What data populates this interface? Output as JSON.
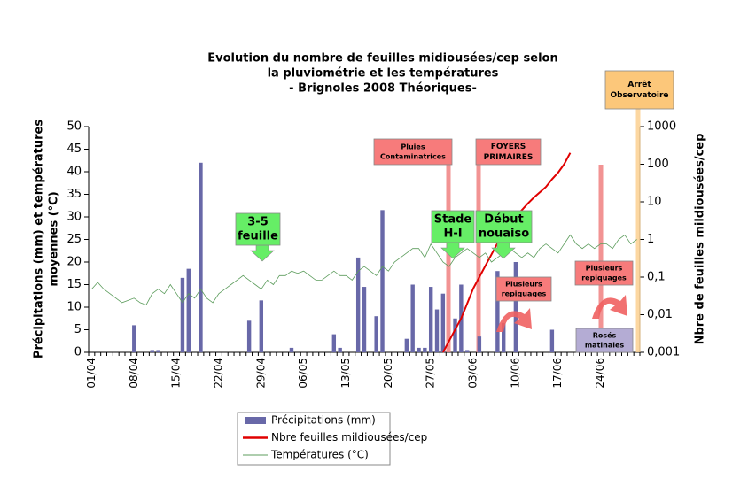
{
  "chart_data": {
    "type": "bar-line",
    "title_lines": [
      "Evolution du nombre de feuilles midiousées/cep selon",
      "la pluviométrie et les températures",
      "- Brignoles 2008 Théoriques-"
    ],
    "ylabel_lines": [
      "Précipitations (mm) et températures",
      "moyennes (°C)"
    ],
    "y2label": "Nbre de feuilles mildiousées/cep",
    "categories": [
      "01/04",
      null,
      null,
      null,
      null,
      null,
      null,
      "08/04",
      null,
      null,
      null,
      null,
      null,
      null,
      "15/04",
      null,
      null,
      null,
      null,
      null,
      null,
      "22/04",
      null,
      null,
      null,
      null,
      null,
      null,
      "29/04",
      null,
      null,
      null,
      null,
      null,
      null,
      "06/05",
      null,
      null,
      null,
      null,
      null,
      null,
      "13/05",
      null,
      null,
      null,
      null,
      null,
      null,
      "20/05",
      null,
      null,
      null,
      null,
      null,
      null,
      "27/05",
      null,
      null,
      null,
      null,
      null,
      null,
      "03/06",
      null,
      null,
      null,
      null,
      null,
      null,
      "10/06",
      null,
      null,
      null,
      null,
      null,
      null,
      "17/06",
      null,
      null,
      null,
      null,
      null,
      null,
      "24/06",
      null,
      null,
      null,
      null,
      null,
      null
    ],
    "series": [
      {
        "name": "Précipitations (mm)",
        "type": "bar",
        "color": "#6868a8",
        "values": [
          0,
          0,
          0,
          0,
          0,
          0,
          0,
          6,
          0,
          0,
          0.5,
          0.5,
          0,
          0,
          0,
          16.5,
          18.5,
          0,
          42,
          0,
          0,
          0,
          0,
          0,
          0,
          0,
          7,
          0,
          11.5,
          0,
          0,
          0,
          0,
          1,
          0,
          0,
          0,
          0,
          0,
          0,
          4,
          1,
          0,
          0,
          21,
          14.5,
          0,
          8,
          31.5,
          0,
          0,
          0,
          3,
          15,
          1,
          1,
          14.5,
          9.5,
          13,
          0,
          7.5,
          15,
          0.5,
          0,
          3.5,
          0,
          0,
          18,
          6.5,
          0,
          20,
          0,
          0,
          0,
          0,
          0,
          5,
          0,
          0,
          0,
          0,
          0,
          0,
          0,
          0,
          0,
          0,
          0,
          0,
          0,
          0
        ]
      },
      {
        "name": "Nbre feuilles mildiousées/cep",
        "type": "line",
        "axis": "y2",
        "color": "#e00000",
        "values": [
          null,
          null,
          null,
          null,
          null,
          null,
          null,
          null,
          null,
          null,
          null,
          null,
          null,
          null,
          null,
          null,
          null,
          null,
          null,
          null,
          null,
          null,
          null,
          null,
          null,
          null,
          null,
          null,
          null,
          null,
          null,
          null,
          null,
          null,
          null,
          null,
          null,
          null,
          null,
          null,
          null,
          null,
          null,
          null,
          null,
          null,
          null,
          null,
          null,
          null,
          null,
          null,
          null,
          null,
          null,
          null,
          null,
          null,
          0.001,
          0.002,
          0.004,
          0.008,
          0.02,
          0.05,
          0.1,
          0.2,
          0.4,
          0.8,
          1.3,
          2.5,
          4,
          6,
          9,
          13,
          18,
          25,
          40,
          60,
          100,
          200,
          null,
          null,
          null,
          null,
          null,
          null,
          null,
          null,
          null,
          null,
          null
        ]
      },
      {
        "name": "Températures (°C)",
        "type": "line",
        "color": "#5c9c5c",
        "values": [
          14,
          15.5,
          14,
          13,
          12,
          11,
          11.5,
          12,
          11,
          10.5,
          13,
          14,
          13,
          15,
          13,
          11,
          13,
          12,
          14,
          12,
          11,
          13,
          14,
          15,
          16,
          17,
          16,
          15,
          14,
          16,
          15,
          17,
          17,
          18,
          17.5,
          18,
          17,
          16,
          16,
          17,
          18,
          17,
          17,
          16,
          18,
          19,
          18,
          17,
          19,
          18,
          20,
          21,
          22,
          23,
          23,
          21,
          24,
          22,
          20,
          19,
          21,
          22,
          23,
          22,
          21,
          22,
          20,
          21,
          22,
          23,
          22,
          21,
          22,
          21,
          23,
          24,
          23,
          22,
          24,
          26,
          24,
          23,
          24,
          23,
          24,
          24,
          23,
          25,
          26,
          24,
          25
        ]
      }
    ],
    "ylim": [
      0,
      50
    ],
    "yticks": [
      0,
      5,
      10,
      15,
      20,
      25,
      30,
      35,
      40,
      45,
      50
    ],
    "y2lim": [
      0.001,
      1000
    ],
    "y2log": true,
    "y2ticks": [
      {
        "value": 0.001,
        "label": "0,001"
      },
      {
        "value": 0.01,
        "label": "0,01"
      },
      {
        "value": 0.1,
        "label": "0,1"
      },
      1,
      10,
      100,
      1000
    ],
    "annotations": [
      [
        "3-5",
        "feuille"
      ],
      [
        "Stade",
        "H-I"
      ],
      [
        "Début",
        "nouaiso"
      ],
      [
        "Pluies",
        "Contaminatrices"
      ],
      [
        "FOYERS",
        "PRIMAIRES"
      ],
      [
        "Plusieurs",
        "repiquages"
      ],
      [
        "Plusieurs",
        "repiquages"
      ],
      [
        "Rosés",
        "matinales"
      ],
      [
        "Arrêt",
        "Observatoire"
      ]
    ]
  }
}
